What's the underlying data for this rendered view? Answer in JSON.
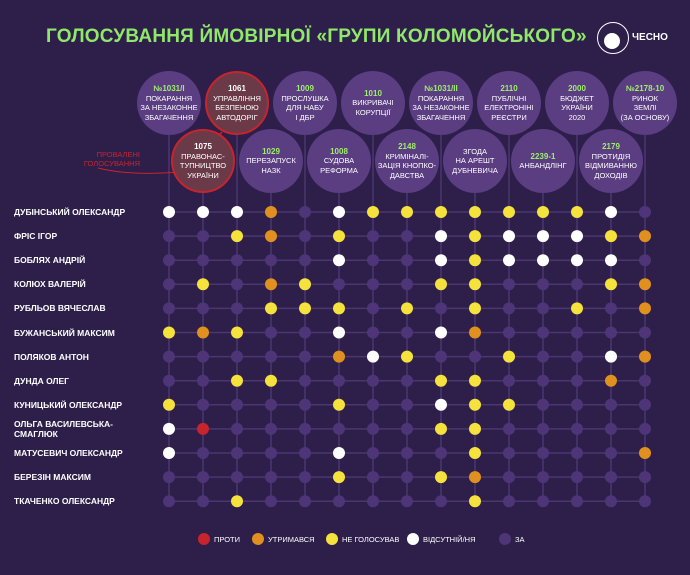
{
  "title": "ГОЛОСУВАННЯ ЙМОВІРНОЇ «ГРУПИ КОЛОМОЙСЬКОГО»",
  "logo_text": "ЧЕСНО",
  "failed_label": "ПРОВАЛЕНІ ГОЛОСУВАННЯ",
  "colors": {
    "background": "#2d1f4a",
    "R": "#c8242d",
    "O": "#e0901e",
    "Y": "#f5e23c",
    "W": "#ffffff",
    "Z": "#4e3578",
    "title": "#8fe86a"
  },
  "columns": [
    {
      "num": "№1031/I",
      "label": "ПОКАРАННЯ\nЗА НЕЗАКОННЕ\nЗБАГАЧЕННЯ",
      "failed": false
    },
    {
      "num": "1075",
      "label": "ПРАВОНАС-\nТУПНИЦТВО\nУКРАЇНИ",
      "failed": true
    },
    {
      "num": "1061",
      "label": "УПРАВЛІННЯ\nБЕЗПЕНОЮ\nАВТОДОРІГ",
      "failed": true
    },
    {
      "num": "1029",
      "label": "ПЕРЕЗАПУСК\nНАЗК",
      "failed": false
    },
    {
      "num": "1009",
      "label": "ПРОСЛУШКА\nДЛЯ НАБУ\nІ ДБР",
      "failed": false
    },
    {
      "num": "1008",
      "label": "СУДОВА\nРЕФОРМА",
      "failed": false
    },
    {
      "num": "1010",
      "label": "ВИКРИВАЧІ\nКОРУПЦІЇ",
      "failed": false
    },
    {
      "num": "2148",
      "label": "КРИМІНАЛІ-\nЗАЦІЯ КНОПКО-\nДАВСТВА",
      "failed": false
    },
    {
      "num": "№1031/II",
      "label": "ПОКАРАННЯ\nЗА НЕЗАКОННЕ\nЗБАГАЧЕННЯ",
      "failed": false
    },
    {
      "num": "",
      "label": "ЗГОДА\nНА АРЕШТ\nДУБНЕВИЧА",
      "failed": false
    },
    {
      "num": "2110",
      "label": "ПУБЛІЧНІ\nЕЛЕКТРОНІНІ\nРЕЄСТРИ",
      "failed": false
    },
    {
      "num": "2239-1",
      "label": "АНБАНДЛІНГ",
      "failed": false
    },
    {
      "num": "2000",
      "label": "БЮДЖЕТ\nУКРАЇНИ\n2020",
      "failed": false
    },
    {
      "num": "2179",
      "label": "ПРОТИДІЯ\nВІДМИВАННЮ\nДОХОДІВ",
      "failed": false
    },
    {
      "num": "№2178-10",
      "label": "РИНОК\nЗЕМЛІ\n(ЗА ОСНОВУ)",
      "failed": false
    }
  ],
  "rows": [
    {
      "name": "ДУБІНСЬКИЙ ОЛЕКСАНДР",
      "votes": "WWWOZWYYYYYYYWZ"
    },
    {
      "name": "ФРІС ІГОР",
      "votes": "ZZYOZYZZWYWWWYO"
    },
    {
      "name": "БОБЛЯХ АНДРІЙ",
      "votes": "ZZZZZWZZWYWWWWZ"
    },
    {
      "name": "КОЛЮХ ВАЛЕРІЙ",
      "votes": "ZYZOYZZZYYZZZYO"
    },
    {
      "name": "РУБЛЬОВ ВЯЧЕСЛАВ",
      "votes": "ZZZYYYZYZYZZYZO"
    },
    {
      "name": "БУЖАНСЬКИЙ МАКСИМ",
      "votes": "YOYZZWZZWOZZZZZ"
    },
    {
      "name": "ПОЛЯКОВ АНТОН",
      "votes": "ZZZZZOWYZZYZZWO"
    },
    {
      "name": "ДУНДА ОЛЕГ",
      "votes": "ZZYYZZZZYYZZZOZ"
    },
    {
      "name": "КУНИЦЬКИЙ ОЛЕКСАНДР",
      "votes": "YZZZZYZZWYYZZZZ"
    },
    {
      "name": "ОЛЬГА ВАСИЛЕВСЬКА-СМАГЛЮК",
      "votes": "WRZZZZZZYYZZZZZ"
    },
    {
      "name": "МАТУСЕВИЧ ОЛЕКСАНДР",
      "votes": "WZZZZWZZZYZZZZO"
    },
    {
      "name": "БЕРЕЗІН МАКСИМ",
      "votes": "ZZZZZYZZYOZZZZZ"
    },
    {
      "name": "ТКАЧЕНКО ОЛЕКСАНДР",
      "votes": "ZZYZZZZZZYZZZZZ"
    }
  ],
  "legend": [
    {
      "key": "R",
      "label": "ПРОТИ"
    },
    {
      "key": "O",
      "label": "УТРИМАВСЯ"
    },
    {
      "key": "Y",
      "label": "НЕ ГОЛОСУВАВ"
    },
    {
      "key": "W",
      "label": "ВІДСУТНІЙ/НЯ"
    },
    {
      "key": "Z",
      "label": "ЗА"
    }
  ]
}
